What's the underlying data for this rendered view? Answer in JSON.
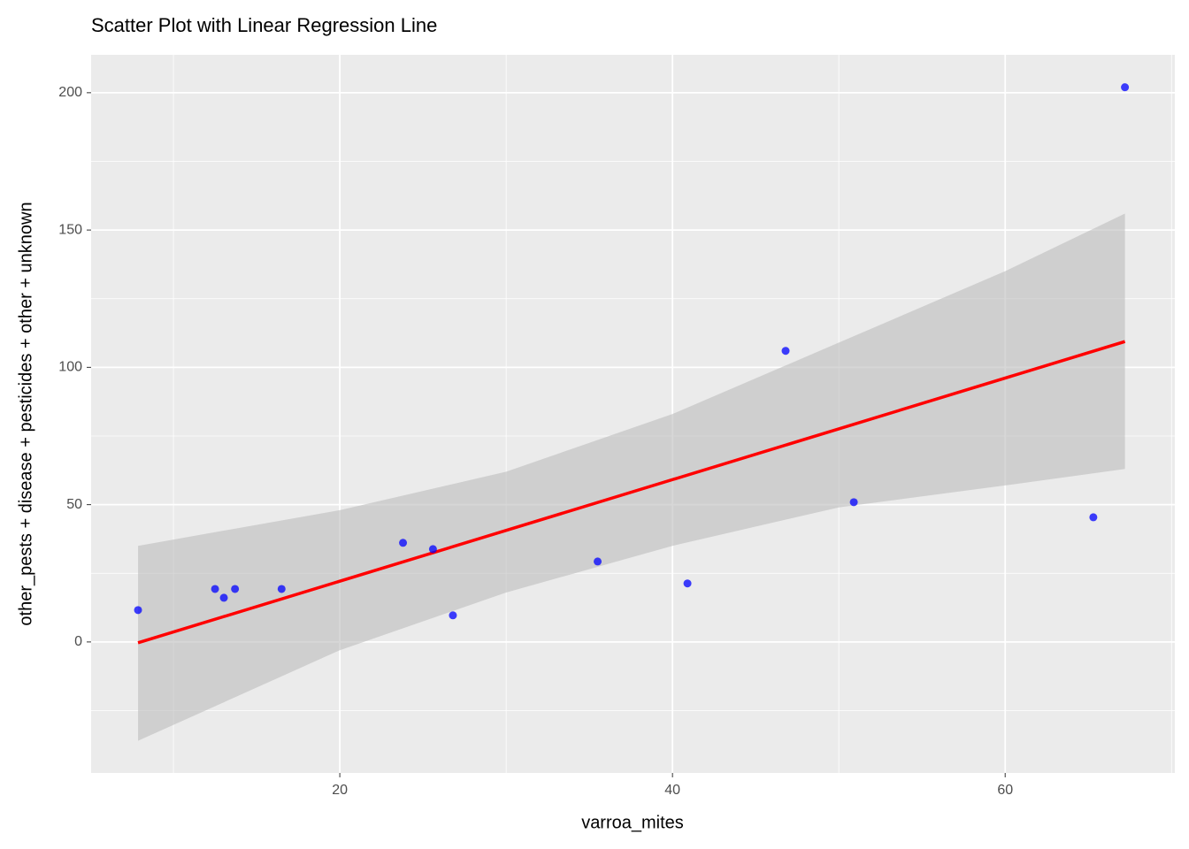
{
  "chart_data": {
    "type": "scatter",
    "title": "Scatter Plot with Linear Regression Line",
    "x_label": "varroa_mites",
    "y_label": "other_pests + disease + pesticides + other + unknown",
    "xlim": [
      5.05,
      70.2
    ],
    "ylim": [
      -47.7,
      213.8
    ],
    "xticks": [
      20,
      40,
      60
    ],
    "yticks": [
      0,
      50,
      100,
      150,
      200
    ],
    "x_minor_grid": [
      10,
      30,
      50,
      70
    ],
    "y_minor_grid": [
      -25,
      25,
      75,
      125,
      175
    ],
    "grid": true,
    "color": "#0000ff",
    "x": [
      7.87,
      12.5,
      13.03,
      13.7,
      16.5,
      23.8,
      25.6,
      26.8,
      35.5,
      40.9,
      46.8,
      50.9,
      65.3,
      67.2
    ],
    "y": [
      11.6,
      19.3,
      16.1,
      19.3,
      19.3,
      36.1,
      33.8,
      9.7,
      29.3,
      21.3,
      106,
      50.9,
      45.4,
      202
    ],
    "fit": {
      "color": "#ff0000",
      "x": [
        7.87,
        67.2
      ],
      "y": [
        -0.3,
        109.4
      ]
    },
    "band": {
      "color": "#bdbdbd",
      "x": [
        7.87,
        20,
        30,
        40,
        50,
        60,
        67.2
      ],
      "lower": [
        -36,
        -3,
        18,
        35,
        49,
        57,
        63
      ],
      "upper": [
        35,
        48,
        62,
        83,
        109,
        135,
        156
      ]
    }
  }
}
